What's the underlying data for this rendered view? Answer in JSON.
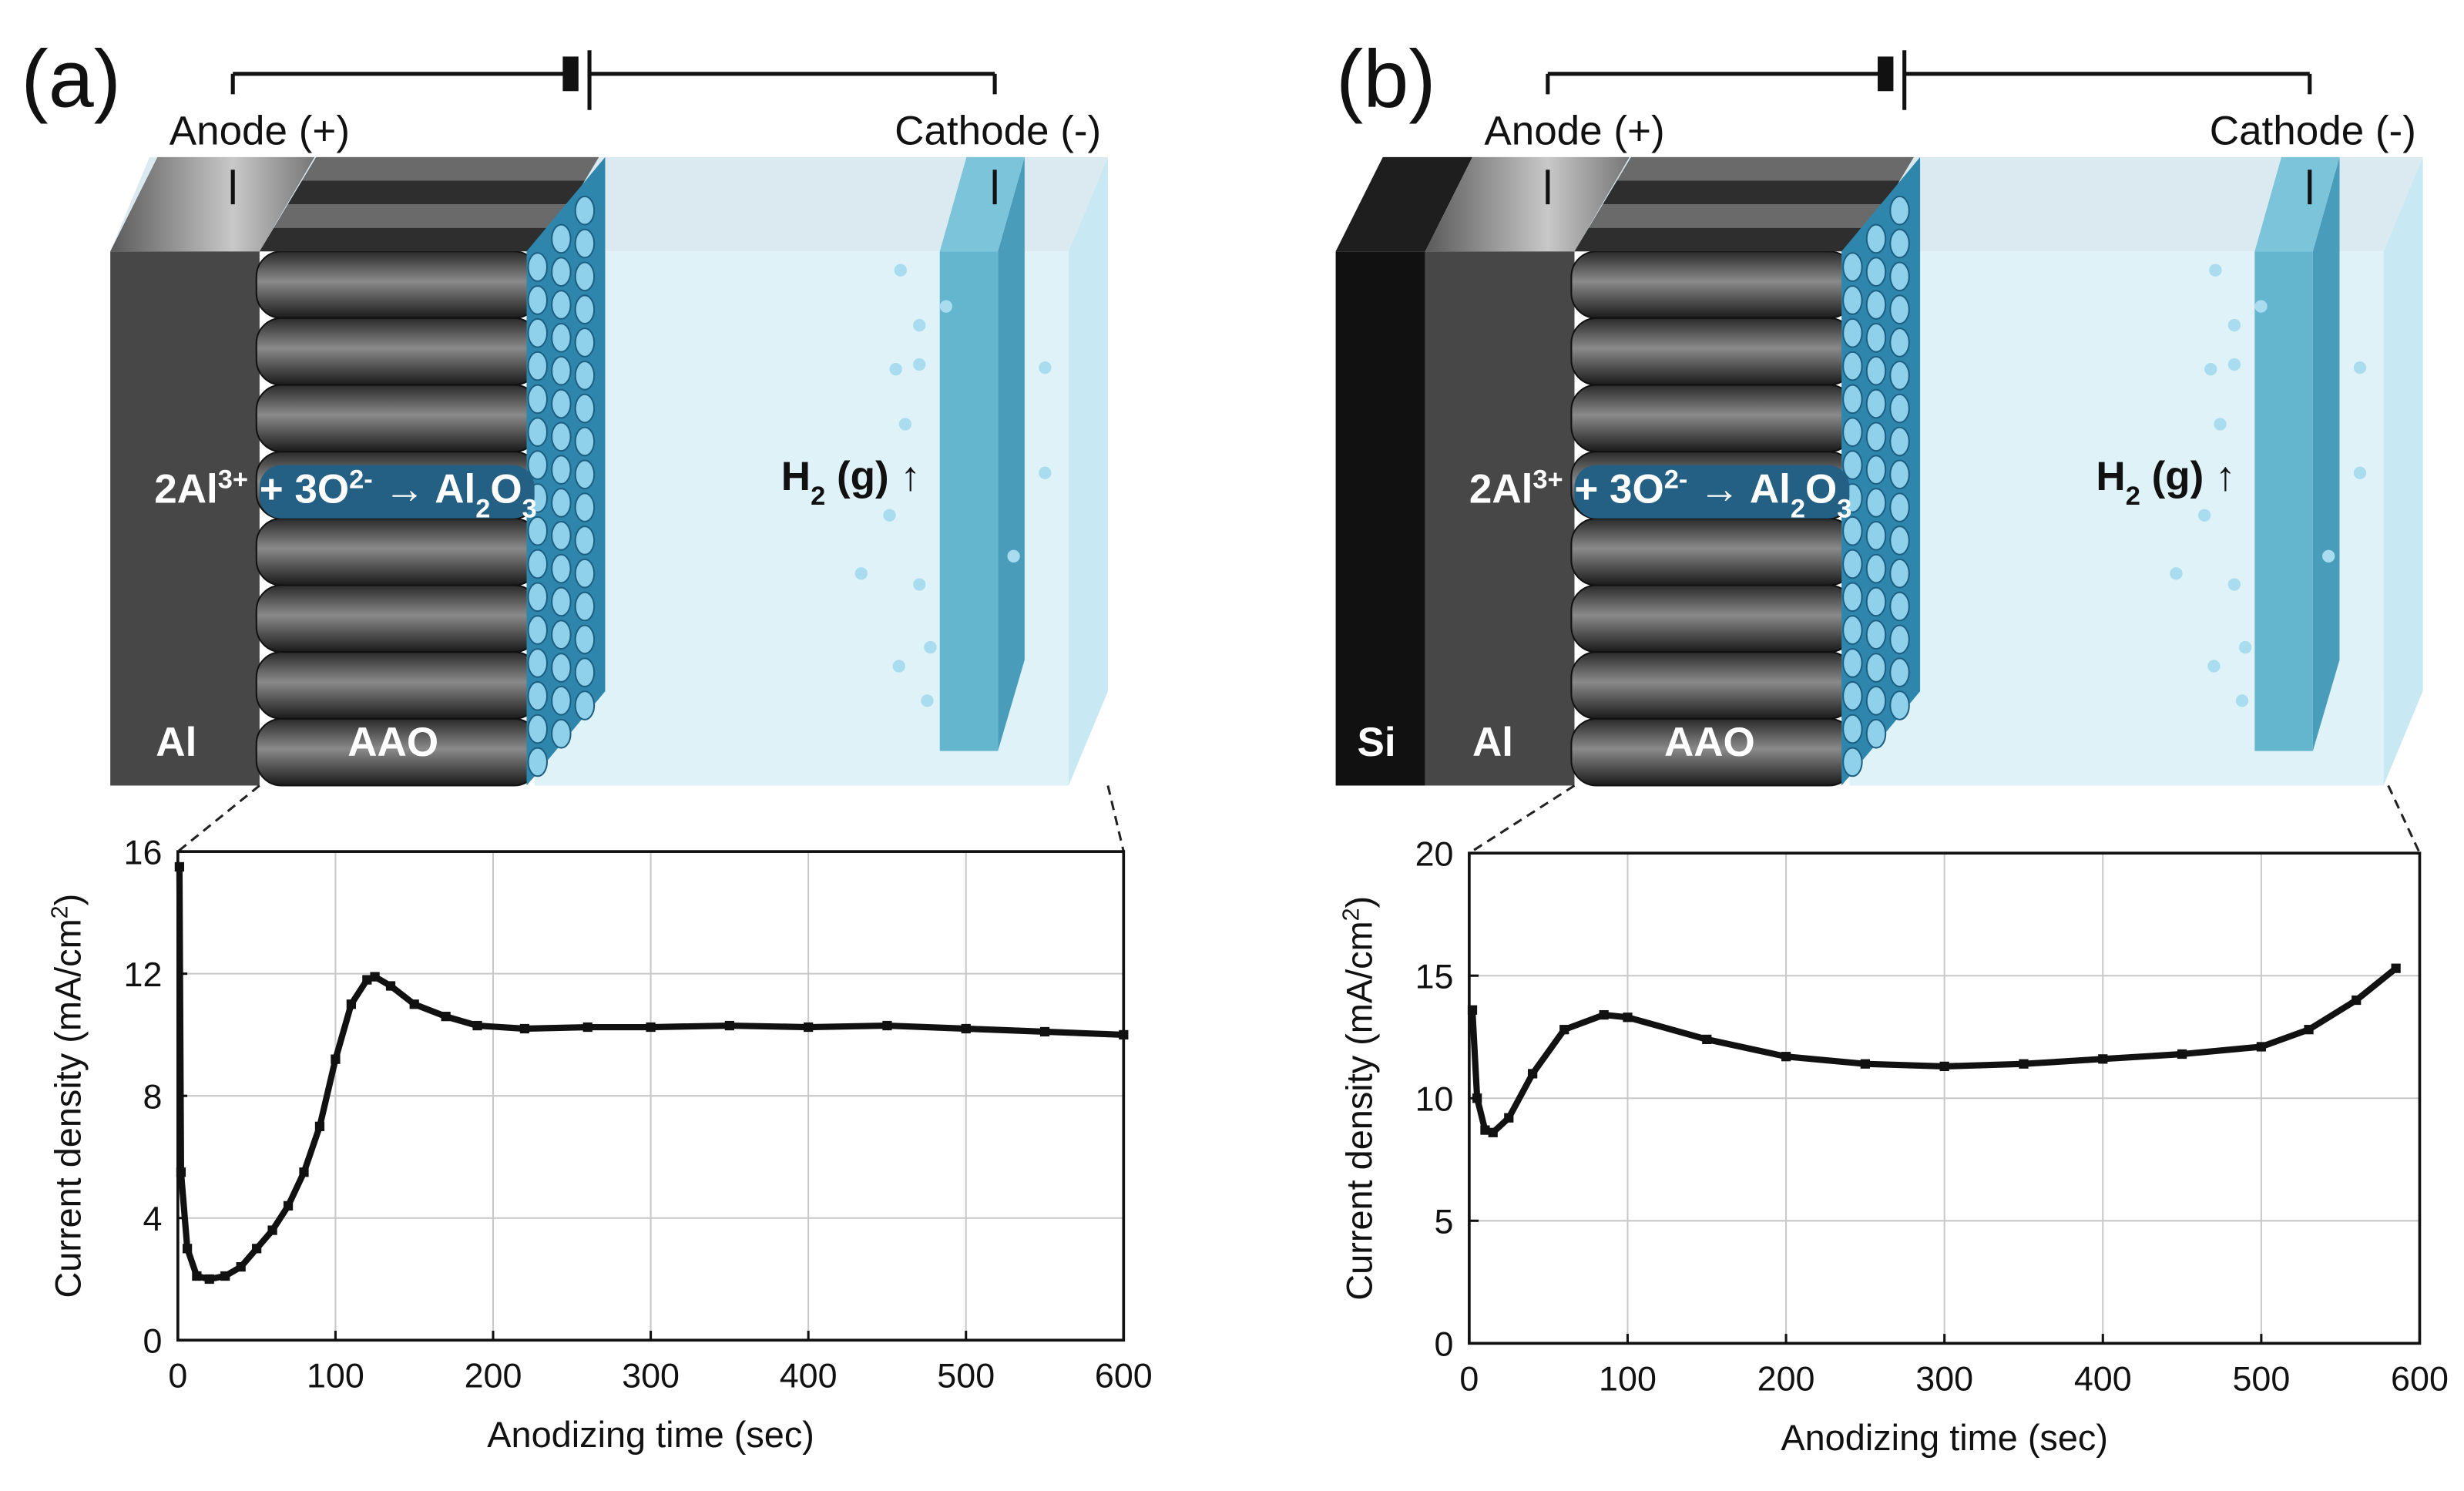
{
  "panels": [
    {
      "label": "(a)",
      "anode": "Anode (+)",
      "cathode": "Cathode (-)",
      "layers": [
        "Al",
        "AAO"
      ],
      "reaction": [
        "2Al",
        "3+",
        " + 3O",
        "2-",
        " → Al",
        "2",
        "O",
        "3"
      ],
      "gas": [
        "H",
        "2",
        " (g) ↑"
      ]
    },
    {
      "label": "(b)",
      "anode": "Anode (+)",
      "cathode": "Cathode (-)",
      "layers": [
        "Si",
        "Al",
        "AAO"
      ],
      "reaction": [
        "2Al",
        "3+",
        " + 3O",
        "2-",
        " → Al",
        "2",
        "O",
        "3"
      ],
      "gas": [
        "H",
        "2",
        " (g) ↑"
      ]
    }
  ],
  "chart_data": [
    {
      "type": "line",
      "x_label": "Anodizing time (sec)",
      "y_label": [
        "Current density (mA/cm",
        "2",
        ")"
      ],
      "xlim": [
        0,
        600
      ],
      "ylim": [
        0,
        16
      ],
      "xticks": [
        0,
        100,
        200,
        300,
        400,
        500,
        600
      ],
      "yticks": [
        0,
        4,
        8,
        12,
        16
      ],
      "grid": true,
      "x": [
        1,
        2,
        6,
        12,
        20,
        30,
        40,
        50,
        60,
        70,
        80,
        90,
        100,
        110,
        120,
        125,
        135,
        150,
        170,
        190,
        220,
        260,
        300,
        350,
        400,
        450,
        500,
        550,
        600
      ],
      "series": [
        {
          "color": "#111111",
          "values": [
            15.5,
            5.5,
            3.0,
            2.1,
            2.0,
            2.1,
            2.4,
            3.0,
            3.6,
            4.4,
            5.5,
            7.0,
            9.2,
            11.0,
            11.8,
            11.9,
            11.6,
            11.0,
            10.6,
            10.3,
            10.2,
            10.25,
            10.25,
            10.3,
            10.25,
            10.3,
            10.2,
            10.1,
            10.0
          ]
        }
      ]
    },
    {
      "type": "line",
      "x_label": "Anodizing time (sec)",
      "y_label": [
        "Current density (mA/cm",
        "2",
        ")"
      ],
      "xlim": [
        0,
        600
      ],
      "ylim": [
        0,
        20
      ],
      "xticks": [
        0,
        100,
        200,
        300,
        400,
        500,
        600
      ],
      "yticks": [
        0,
        5,
        10,
        15,
        20
      ],
      "grid": true,
      "x": [
        2,
        5,
        10,
        15,
        25,
        40,
        60,
        85,
        100,
        150,
        200,
        250,
        300,
        350,
        400,
        450,
        500,
        530,
        560,
        585
      ],
      "series": [
        {
          "color": "#111111",
          "values": [
            13.6,
            10.0,
            8.7,
            8.6,
            9.2,
            11.0,
            12.8,
            13.4,
            13.3,
            12.4,
            11.7,
            11.4,
            11.3,
            11.4,
            11.6,
            11.8,
            12.1,
            12.8,
            14.0,
            15.3
          ]
        }
      ]
    }
  ]
}
